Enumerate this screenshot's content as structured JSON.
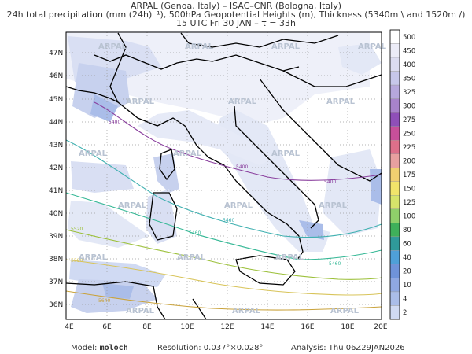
{
  "header": {
    "line1": "ARPAL (Genoa, Italy) – ISAC–CNR (Bologna, Italy)",
    "line2": "24h total precipitation (mm (24h)⁻¹), 500hPa Geopotential Heights (m), Thickness (5340m \\ and 1520m /)",
    "line3": "15 UTC Fri 30 JAN – τ = 33h"
  },
  "map": {
    "lat_labels": [
      "47N",
      "46N",
      "45N",
      "44N",
      "43N",
      "42N",
      "41N",
      "40N",
      "39N",
      "38N",
      "37N",
      "36N"
    ],
    "lon_labels": [
      "4E",
      "6E",
      "8E",
      "10E",
      "12E",
      "14E",
      "16E",
      "18E",
      "20E"
    ],
    "watermark": "ARPAL",
    "isolines": [
      {
        "label": "5400",
        "color": "#8a3f9e"
      },
      {
        "label": "5460",
        "color": "#3fb0b0"
      },
      {
        "label": "5520",
        "color": "#9cc03a"
      },
      {
        "label": "5580",
        "color": "#d8c45a"
      },
      {
        "label": "5640",
        "color": "#c9a23a"
      }
    ]
  },
  "colorbar": {
    "labels": [
      "500",
      "450",
      "400",
      "350",
      "325",
      "300",
      "275",
      "250",
      "225",
      "200",
      "175",
      "150",
      "125",
      "100",
      "80",
      "60",
      "40",
      "20",
      "10",
      "4",
      "2"
    ],
    "colors": [
      "#ffffff",
      "#ececf7",
      "#dcdcf0",
      "#c7c7ea",
      "#b6a7dc",
      "#a883cb",
      "#8f4fb8",
      "#c84f9a",
      "#dd6f8a",
      "#e8a0a0",
      "#f0d070",
      "#f1e46a",
      "#d6e46a",
      "#8fd06a",
      "#3fb05a",
      "#2f9a9a",
      "#4fa0d8",
      "#6f93da",
      "#8fa8e2",
      "#aabde9",
      "#d0daf3"
    ]
  },
  "footer": {
    "model_label": "Model:",
    "model_value": "moloch",
    "resolution": "Resolution: 0.037°×0.028°",
    "analysis": "Analysis: Thu 06Z29JAN2026"
  }
}
